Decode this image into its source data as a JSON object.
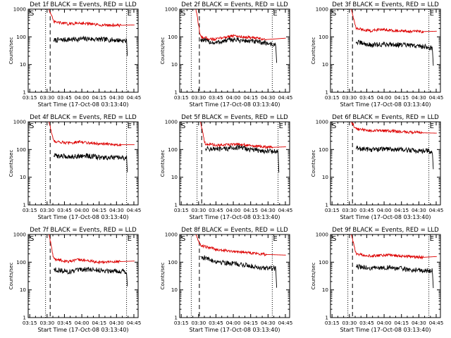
{
  "colors": {
    "events": "#000000",
    "lld": "#dd0000",
    "axes": "#000000",
    "background": "#ffffff"
  },
  "legend": {
    "black": "BLACK = Events",
    "red": "RED = LLD"
  },
  "markers": {
    "start": "S",
    "end": "E"
  },
  "chart_data": [
    {
      "type": "line",
      "title": "Det 1f BLACK = Events, RED = LLD",
      "xlabel": "Start Time (17-Oct-08 03:13:40)",
      "ylabel": "Counts/sec",
      "xticks": [
        "03:15",
        "03:30",
        "03:45",
        "04:00",
        "04:15",
        "04:30",
        "04:45"
      ],
      "yticks": [
        "1",
        "10",
        "100",
        "1000"
      ],
      "yscale": "log",
      "ylim": [
        1,
        1000
      ],
      "xlim_min": [
        0,
        95
      ],
      "markers_min": [
        15,
        19,
        85
      ],
      "series": [
        {
          "name": "Events",
          "values": [
            [
              22,
              75
            ],
            [
              35,
              80
            ],
            [
              50,
              85
            ],
            [
              65,
              80
            ],
            [
              80,
              75
            ],
            [
              85,
              70
            ],
            [
              86,
              12
            ]
          ]
        },
        {
          "name": "LLD",
          "values": [
            [
              18,
              1000
            ],
            [
              22,
              350
            ],
            [
              35,
              290
            ],
            [
              45,
              320
            ],
            [
              60,
              270
            ],
            [
              80,
              260
            ],
            [
              92,
              270
            ]
          ]
        }
      ]
    },
    {
      "type": "line",
      "title": "Det 2f BLACK = Events, RED = LLD",
      "xlabel": "Start Time (17-Oct-08 03:13:40)",
      "ylabel": "Counts/sec",
      "xticks": [
        "03:15",
        "03:30",
        "03:45",
        "04:00",
        "04:15",
        "04:30",
        "04:45"
      ],
      "yticks": [
        "1",
        "10",
        "100",
        "1000"
      ],
      "yscale": "log",
      "ylim": [
        1,
        1000
      ],
      "xlim_min": [
        0,
        95
      ],
      "markers_min": [
        10,
        17,
        80
      ],
      "series": [
        {
          "name": "Events",
          "values": [
            [
              18,
              80
            ],
            [
              30,
              60
            ],
            [
              45,
              80
            ],
            [
              60,
              70
            ],
            [
              75,
              60
            ],
            [
              83,
              50
            ],
            [
              84,
              8
            ]
          ]
        },
        {
          "name": "LLD",
          "values": [
            [
              14,
              1000
            ],
            [
              18,
              100
            ],
            [
              30,
              80
            ],
            [
              45,
              110
            ],
            [
              60,
              95
            ],
            [
              75,
              80
            ],
            [
              92,
              90
            ]
          ]
        }
      ]
    },
    {
      "type": "line",
      "title": "Det 3f BLACK = Events, RED = LLD",
      "xlabel": "Start Time (17-Oct-08 03:13:40)",
      "ylabel": "Counts/sec",
      "xticks": [
        "03:15",
        "03:30",
        "03:45",
        "04:00",
        "04:15",
        "04:30",
        "04:45"
      ],
      "yticks": [
        "1",
        "10",
        "100",
        "1000"
      ],
      "yscale": "log",
      "ylim": [
        1,
        1000
      ],
      "xlim_min": [
        0,
        95
      ],
      "markers_min": [
        15,
        19,
        85
      ],
      "series": [
        {
          "name": "Events",
          "values": [
            [
              22,
              65
            ],
            [
              35,
              50
            ],
            [
              50,
              55
            ],
            [
              65,
              50
            ],
            [
              80,
              45
            ],
            [
              88,
              40
            ],
            [
              89,
              7
            ]
          ]
        },
        {
          "name": "LLD",
          "values": [
            [
              18,
              1000
            ],
            [
              22,
              200
            ],
            [
              35,
              165
            ],
            [
              45,
              190
            ],
            [
              60,
              160
            ],
            [
              80,
              155
            ],
            [
              92,
              160
            ]
          ]
        }
      ]
    },
    {
      "type": "line",
      "title": "Det 4f BLACK = Events, RED = LLD",
      "xlabel": "Start Time (17-Oct-08 03:13:40)",
      "ylabel": "Counts/sec",
      "xticks": [
        "03:15",
        "03:30",
        "03:45",
        "04:00",
        "04:15",
        "04:30",
        "04:45"
      ],
      "yticks": [
        "1",
        "10",
        "100",
        "1000"
      ],
      "yscale": "log",
      "ylim": [
        1,
        1000
      ],
      "xlim_min": [
        0,
        95
      ],
      "markers_min": [
        15,
        19,
        85
      ],
      "series": [
        {
          "name": "Events",
          "values": [
            [
              22,
              60
            ],
            [
              35,
              55
            ],
            [
              50,
              60
            ],
            [
              65,
              50
            ],
            [
              80,
              50
            ],
            [
              85,
              50
            ],
            [
              86,
              9
            ]
          ]
        },
        {
          "name": "LLD",
          "values": [
            [
              18,
              1000
            ],
            [
              22,
              200
            ],
            [
              35,
              170
            ],
            [
              45,
              190
            ],
            [
              60,
              160
            ],
            [
              80,
              150
            ],
            [
              92,
              150
            ]
          ]
        }
      ]
    },
    {
      "type": "line",
      "title": "Det 5f BLACK = Events, RED = LLD",
      "xlabel": "Start Time (17-Oct-08 03:13:40)",
      "ylabel": "Counts/sec",
      "xticks": [
        "03:15",
        "03:30",
        "03:45",
        "04:00",
        "04:15",
        "04:30",
        "04:45"
      ],
      "yticks": [
        "1",
        "10",
        "100",
        "1000"
      ],
      "yscale": "log",
      "ylim": [
        1,
        1000
      ],
      "xlim_min": [
        0,
        95
      ],
      "markers_min": [
        15,
        19,
        85
      ],
      "series": [
        {
          "name": "Events",
          "values": [
            [
              22,
              110
            ],
            [
              35,
              100
            ],
            [
              50,
              120
            ],
            [
              65,
              95
            ],
            [
              80,
              85
            ],
            [
              85,
              85
            ],
            [
              86,
              7
            ]
          ]
        },
        {
          "name": "LLD",
          "values": [
            [
              18,
              1000
            ],
            [
              22,
              160
            ],
            [
              35,
              140
            ],
            [
              50,
              160
            ],
            [
              65,
              130
            ],
            [
              80,
              120
            ],
            [
              92,
              125
            ]
          ]
        }
      ]
    },
    {
      "type": "line",
      "title": "Det 6f BLACK = Events, RED = LLD",
      "xlabel": "Start Time (17-Oct-08 03:13:40)",
      "ylabel": "Counts/sec",
      "xticks": [
        "03:15",
        "03:30",
        "03:45",
        "04:00",
        "04:15",
        "04:30",
        "04:45"
      ],
      "yticks": [
        "1",
        "10",
        "100",
        "1000"
      ],
      "yscale": "log",
      "ylim": [
        1,
        1000
      ],
      "xlim_min": [
        0,
        95
      ],
      "markers_min": [
        15,
        19,
        85
      ],
      "series": [
        {
          "name": "Events",
          "values": [
            [
              22,
              110
            ],
            [
              35,
              100
            ],
            [
              50,
              105
            ],
            [
              65,
              95
            ],
            [
              80,
              90
            ],
            [
              88,
              85
            ],
            [
              89,
              15
            ]
          ]
        },
        {
          "name": "LLD",
          "values": [
            [
              18,
              1000
            ],
            [
              22,
              550
            ],
            [
              35,
              480
            ],
            [
              50,
              470
            ],
            [
              65,
              430
            ],
            [
              80,
              400
            ],
            [
              92,
              390
            ]
          ]
        }
      ]
    },
    {
      "type": "line",
      "title": "Det 7f BLACK = Events, RED = LLD",
      "xlabel": "Start Time (17-Oct-08 03:13:40)",
      "ylabel": "Counts/sec",
      "xticks": [
        "03:15",
        "03:30",
        "03:45",
        "04:00",
        "04:15",
        "04:30",
        "04:45"
      ],
      "yticks": [
        "1",
        "10",
        "100",
        "1000"
      ],
      "yscale": "log",
      "ylim": [
        1,
        1000
      ],
      "xlim_min": [
        0,
        95
      ],
      "markers_min": [
        15,
        19,
        85
      ],
      "series": [
        {
          "name": "Events",
          "values": [
            [
              22,
              55
            ],
            [
              35,
              45
            ],
            [
              50,
              55
            ],
            [
              65,
              50
            ],
            [
              80,
              48
            ],
            [
              85,
              45
            ],
            [
              86,
              8
            ]
          ]
        },
        {
          "name": "LLD",
          "values": [
            [
              18,
              1000
            ],
            [
              22,
              130
            ],
            [
              35,
              105
            ],
            [
              45,
              125
            ],
            [
              60,
              100
            ],
            [
              80,
              105
            ],
            [
              92,
              110
            ]
          ]
        }
      ]
    },
    {
      "type": "line",
      "title": "Det 8f BLACK = Events, RED = LLD",
      "xlabel": "Start Time (17-Oct-08 03:13:40)",
      "ylabel": "Counts/sec",
      "xticks": [
        "03:15",
        "03:30",
        "03:45",
        "04:00",
        "04:15",
        "04:30",
        "04:45"
      ],
      "yticks": [
        "1",
        "10",
        "100",
        "1000"
      ],
      "yscale": "log",
      "ylim": [
        1,
        1000
      ],
      "xlim_min": [
        0,
        95
      ],
      "markers_min": [
        10,
        17,
        80
      ],
      "series": [
        {
          "name": "Events",
          "values": [
            [
              18,
              160
            ],
            [
              30,
              110
            ],
            [
              45,
              90
            ],
            [
              60,
              75
            ],
            [
              75,
              60
            ],
            [
              83,
              60
            ],
            [
              84,
              8
            ]
          ]
        },
        {
          "name": "LLD",
          "values": [
            [
              14,
              1000
            ],
            [
              18,
              400
            ],
            [
              30,
              300
            ],
            [
              45,
              250
            ],
            [
              60,
              220
            ],
            [
              75,
              190
            ],
            [
              92,
              180
            ]
          ]
        }
      ]
    },
    {
      "type": "line",
      "title": "Det 9f BLACK = Events, RED = LLD",
      "xlabel": "Start Time (17-Oct-08 03:13:40)",
      "ylabel": "Counts/sec",
      "xticks": [
        "03:15",
        "03:30",
        "03:45",
        "04:00",
        "04:15",
        "04:30",
        "04:45"
      ],
      "yticks": [
        "1",
        "10",
        "100",
        "1000"
      ],
      "yscale": "log",
      "ylim": [
        1,
        1000
      ],
      "xlim_min": [
        0,
        95
      ],
      "markers_min": [
        15,
        19,
        85
      ],
      "series": [
        {
          "name": "Events",
          "values": [
            [
              22,
              70
            ],
            [
              35,
              60
            ],
            [
              50,
              65
            ],
            [
              65,
              55
            ],
            [
              80,
              50
            ],
            [
              88,
              50
            ],
            [
              89,
              9
            ]
          ]
        },
        {
          "name": "LLD",
          "values": [
            [
              18,
              1000
            ],
            [
              22,
              200
            ],
            [
              35,
              170
            ],
            [
              50,
              180
            ],
            [
              65,
              160
            ],
            [
              80,
              150
            ],
            [
              92,
              160
            ]
          ]
        }
      ]
    }
  ]
}
